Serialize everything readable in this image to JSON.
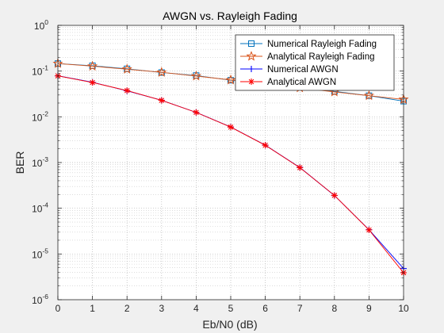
{
  "chart_data": {
    "type": "line",
    "title": "AWGN vs. Rayleigh Fading",
    "xlabel": "Eb/N0 (dB)",
    "ylabel": "BER",
    "xlim": [
      0,
      10
    ],
    "ylim": [
      1e-06,
      1
    ],
    "yscale": "log",
    "grid": true,
    "legend_position": "top-right",
    "x": [
      0,
      1,
      2,
      3,
      4,
      5,
      6,
      7,
      8,
      9,
      10
    ],
    "x_ticks": [
      "0",
      "1",
      "2",
      "3",
      "4",
      "5",
      "6",
      "7",
      "8",
      "9",
      "10"
    ],
    "y_ticks": [
      {
        "base": "10",
        "exp": "-6"
      },
      {
        "base": "10",
        "exp": "-5"
      },
      {
        "base": "10",
        "exp": "-4"
      },
      {
        "base": "10",
        "exp": "-3"
      },
      {
        "base": "10",
        "exp": "-2"
      },
      {
        "base": "10",
        "exp": "-1"
      },
      {
        "base": "10",
        "exp": "0"
      }
    ],
    "series": [
      {
        "name": "Numerical Rayleigh Fading",
        "marker": "square",
        "color": "#0072BD",
        "values": [
          0.146,
          0.131,
          0.112,
          0.093,
          0.08,
          0.063,
          0.054,
          0.045,
          0.036,
          0.029,
          0.022
        ]
      },
      {
        "name": "Analytical Rayleigh Fading",
        "marker": "pentagram",
        "color": "#D95319",
        "values": [
          0.146,
          0.128,
          0.11,
          0.094,
          0.078,
          0.064,
          0.053,
          0.043,
          0.035,
          0.029,
          0.024
        ]
      },
      {
        "name": "Numerical AWGN",
        "marker": "plus",
        "color": "#0000FF",
        "values": [
          0.079,
          0.057,
          0.037,
          0.023,
          0.0125,
          0.006,
          0.0024,
          0.00078,
          0.00019,
          3.4e-05,
          4.8e-06
        ]
      },
      {
        "name": "Analytical AWGN",
        "marker": "asterisk",
        "color": "#FF0000",
        "values": [
          0.0786,
          0.0563,
          0.0375,
          0.0229,
          0.0125,
          0.00595,
          0.00239,
          0.000773,
          0.000191,
          3.36e-05,
          3.9e-06
        ]
      }
    ]
  }
}
